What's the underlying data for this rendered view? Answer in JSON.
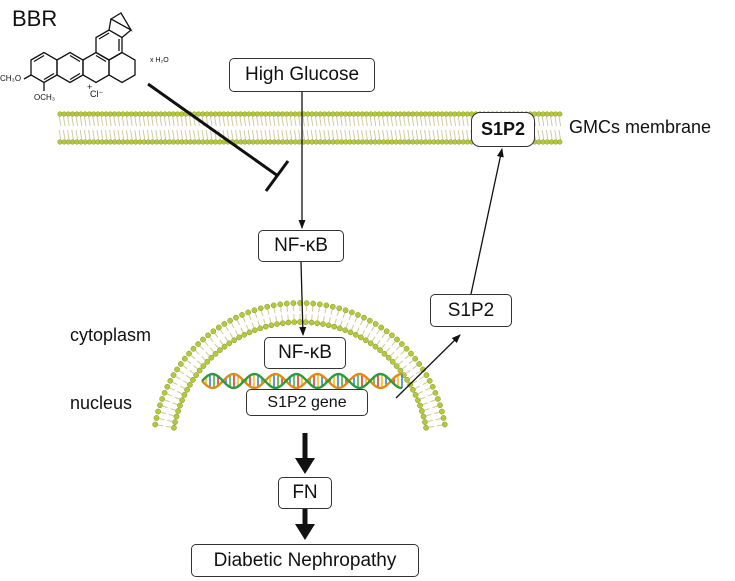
{
  "labels": {
    "bbr": "BBR",
    "membrane": "GMCs membrane",
    "cytoplasm": "cytoplasm",
    "nucleus": "nucleus"
  },
  "structure": {
    "methoxy_top": "CH₃O",
    "methoxy_bottom": "OCH₃",
    "charge": "+",
    "counterion": "Cl⁻",
    "hydrate": "x H₂O"
  },
  "nodes": {
    "high_glucose": "High Glucose",
    "nfkb_cytoplasm": "NF-κB",
    "nfkb_nucleus": "NF-κB",
    "s1p2_gene": "S1P2 gene",
    "s1p2_cytoplasm": "S1P2",
    "s1p2_membrane": "S1P2",
    "fn": "FN",
    "diabetic_nephropathy": "Diabetic Nephropathy"
  },
  "colors": {
    "lipid_head": "#b5c93a",
    "lipid_head_stroke": "#7e9220",
    "lipid_tail": "#cfc79c",
    "dna_strand_a": "#e08a18",
    "dna_strand_b": "#2e9a3c",
    "dna_rungs": [
      "#e33b2e",
      "#f2c21b",
      "#3b7fd4",
      "#4ab04a"
    ]
  }
}
